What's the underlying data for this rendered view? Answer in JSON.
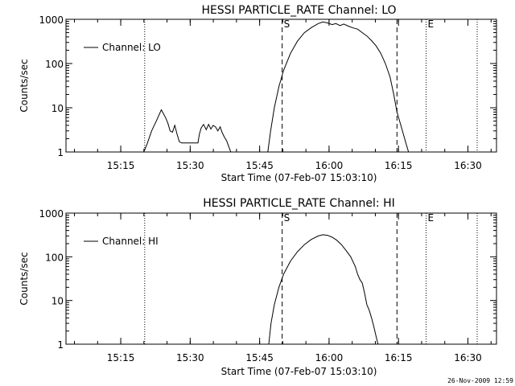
{
  "footer_timestamp": "26-Nov-2009 12:59",
  "chart_data": [
    {
      "type": "line",
      "title": "HESSI PARTICLE_RATE Channel: LO",
      "xlabel": "Start Time (07-Feb-07 15:03:10)",
      "ylabel": "Counts/sec",
      "yscale": "log",
      "ylim": [
        1,
        1000
      ],
      "y_ticks": [
        1,
        10,
        100,
        1000
      ],
      "y_tick_labels": [
        "1",
        "10",
        "100",
        "1000"
      ],
      "x_units": "minutes after 15:03:10",
      "xlim": [
        0,
        93
      ],
      "x_tick_values": [
        11.83,
        26.83,
        41.83,
        56.83,
        71.83,
        86.83
      ],
      "x_tick_labels": [
        "15:15",
        "15:30",
        "15:45",
        "16:00",
        "16:15",
        "16:30"
      ],
      "legend": {
        "label": "Channel: LO",
        "position": "top-left"
      },
      "markers": [
        {
          "x": 46.7,
          "style": "dashed",
          "label": "S"
        },
        {
          "x": 71.5,
          "style": "dashed",
          "label": ""
        },
        {
          "x": 17.0,
          "style": "dotted",
          "label": ""
        },
        {
          "x": 77.8,
          "style": "dotted",
          "label": "E"
        },
        {
          "x": 94.5,
          "style": "dotted",
          "label": ""
        }
      ],
      "series": [
        {
          "name": "Channel: LO",
          "segments": [
            [
              [
                16.8,
                1
              ],
              [
                17.5,
                1.5
              ],
              [
                18.5,
                3
              ],
              [
                19.5,
                5
              ],
              [
                20.6,
                9
              ],
              [
                21.5,
                6
              ],
              [
                22,
                4.5
              ],
              [
                22.5,
                3
              ],
              [
                23,
                2.8
              ],
              [
                23.5,
                4
              ],
              [
                24,
                2.5
              ],
              [
                24.5,
                1.7
              ],
              [
                25,
                1.6
              ],
              [
                26,
                1.6
              ],
              [
                27.5,
                1.6
              ],
              [
                28.5,
                1.6
              ],
              [
                28.8,
                2.5
              ],
              [
                29.2,
                3.5
              ],
              [
                29.7,
                4.2
              ],
              [
                30.3,
                3.2
              ],
              [
                30.8,
                4.2
              ],
              [
                31.3,
                3.3
              ],
              [
                31.8,
                4
              ],
              [
                32.3,
                3.7
              ],
              [
                32.8,
                3
              ],
              [
                33.3,
                3.7
              ],
              [
                33.7,
                2.8
              ],
              [
                34.2,
                2.2
              ],
              [
                34.7,
                1.8
              ],
              [
                35.3,
                1.2
              ],
              [
                35.6,
                1
              ]
            ],
            [
              [
                43.6,
                1
              ],
              [
                44.2,
                3
              ],
              [
                45,
                10
              ],
              [
                46,
                30
              ],
              [
                47,
                70
              ],
              [
                48.5,
                170
              ],
              [
                50,
                320
              ],
              [
                51.5,
                500
              ],
              [
                53,
                650
              ],
              [
                54.5,
                800
              ],
              [
                55.5,
                870
              ],
              [
                56.5,
                830
              ],
              [
                57.5,
                760
              ],
              [
                58.3,
                800
              ],
              [
                59.2,
                720
              ],
              [
                60,
                780
              ],
              [
                61,
                700
              ],
              [
                62,
                640
              ],
              [
                63,
                600
              ],
              [
                64,
                500
              ],
              [
                65,
                420
              ],
              [
                66,
                330
              ],
              [
                67,
                250
              ],
              [
                68,
                170
              ],
              [
                69,
                100
              ],
              [
                70,
                50
              ],
              [
                70.8,
                20
              ],
              [
                71.5,
                8
              ],
              [
                72.5,
                3.5
              ],
              [
                73.5,
                1.5
              ],
              [
                74,
                1
              ]
            ]
          ]
        }
      ]
    },
    {
      "type": "line",
      "title": "HESSI PARTICLE_RATE Channel: HI",
      "xlabel": "Start Time (07-Feb-07 15:03:10)",
      "ylabel": "Counts/sec",
      "yscale": "log",
      "ylim": [
        1,
        1000
      ],
      "y_ticks": [
        1,
        10,
        100,
        1000
      ],
      "y_tick_labels": [
        "1",
        "10",
        "100",
        "1000"
      ],
      "x_units": "minutes after 15:03:10",
      "xlim": [
        0,
        93
      ],
      "x_tick_values": [
        11.83,
        26.83,
        41.83,
        56.83,
        71.83,
        86.83
      ],
      "x_tick_labels": [
        "15:15",
        "15:30",
        "15:45",
        "16:00",
        "16:15",
        "16:30"
      ],
      "legend": {
        "label": "Channel: HI",
        "position": "top-left"
      },
      "markers": [
        {
          "x": 46.7,
          "style": "dashed",
          "label": "S"
        },
        {
          "x": 71.5,
          "style": "dashed",
          "label": ""
        },
        {
          "x": 17.0,
          "style": "dotted",
          "label": ""
        },
        {
          "x": 77.8,
          "style": "dotted",
          "label": "E"
        },
        {
          "x": 94.5,
          "style": "dotted",
          "label": ""
        }
      ],
      "series": [
        {
          "name": "Channel: HI",
          "segments": [
            [
              [
                43.8,
                1
              ],
              [
                44.3,
                3
              ],
              [
                45,
                8
              ],
              [
                46,
                20
              ],
              [
                47,
                40
              ],
              [
                48.5,
                80
              ],
              [
                50,
                130
              ],
              [
                51.5,
                190
              ],
              [
                53,
                250
              ],
              [
                54.5,
                300
              ],
              [
                55.5,
                320
              ],
              [
                56.5,
                310
              ],
              [
                57.5,
                280
              ],
              [
                58.5,
                240
              ],
              [
                59.5,
                190
              ],
              [
                60.5,
                140
              ],
              [
                61.5,
                100
              ],
              [
                62.5,
                60
              ],
              [
                63,
                40
              ],
              [
                63.5,
                30
              ],
              [
                64,
                25
              ],
              [
                64.5,
                15
              ],
              [
                65,
                8
              ],
              [
                65.5,
                6
              ],
              [
                66,
                4
              ],
              [
                66.5,
                2.5
              ],
              [
                67,
                1.5
              ],
              [
                67.4,
                1
              ]
            ]
          ]
        }
      ]
    }
  ]
}
